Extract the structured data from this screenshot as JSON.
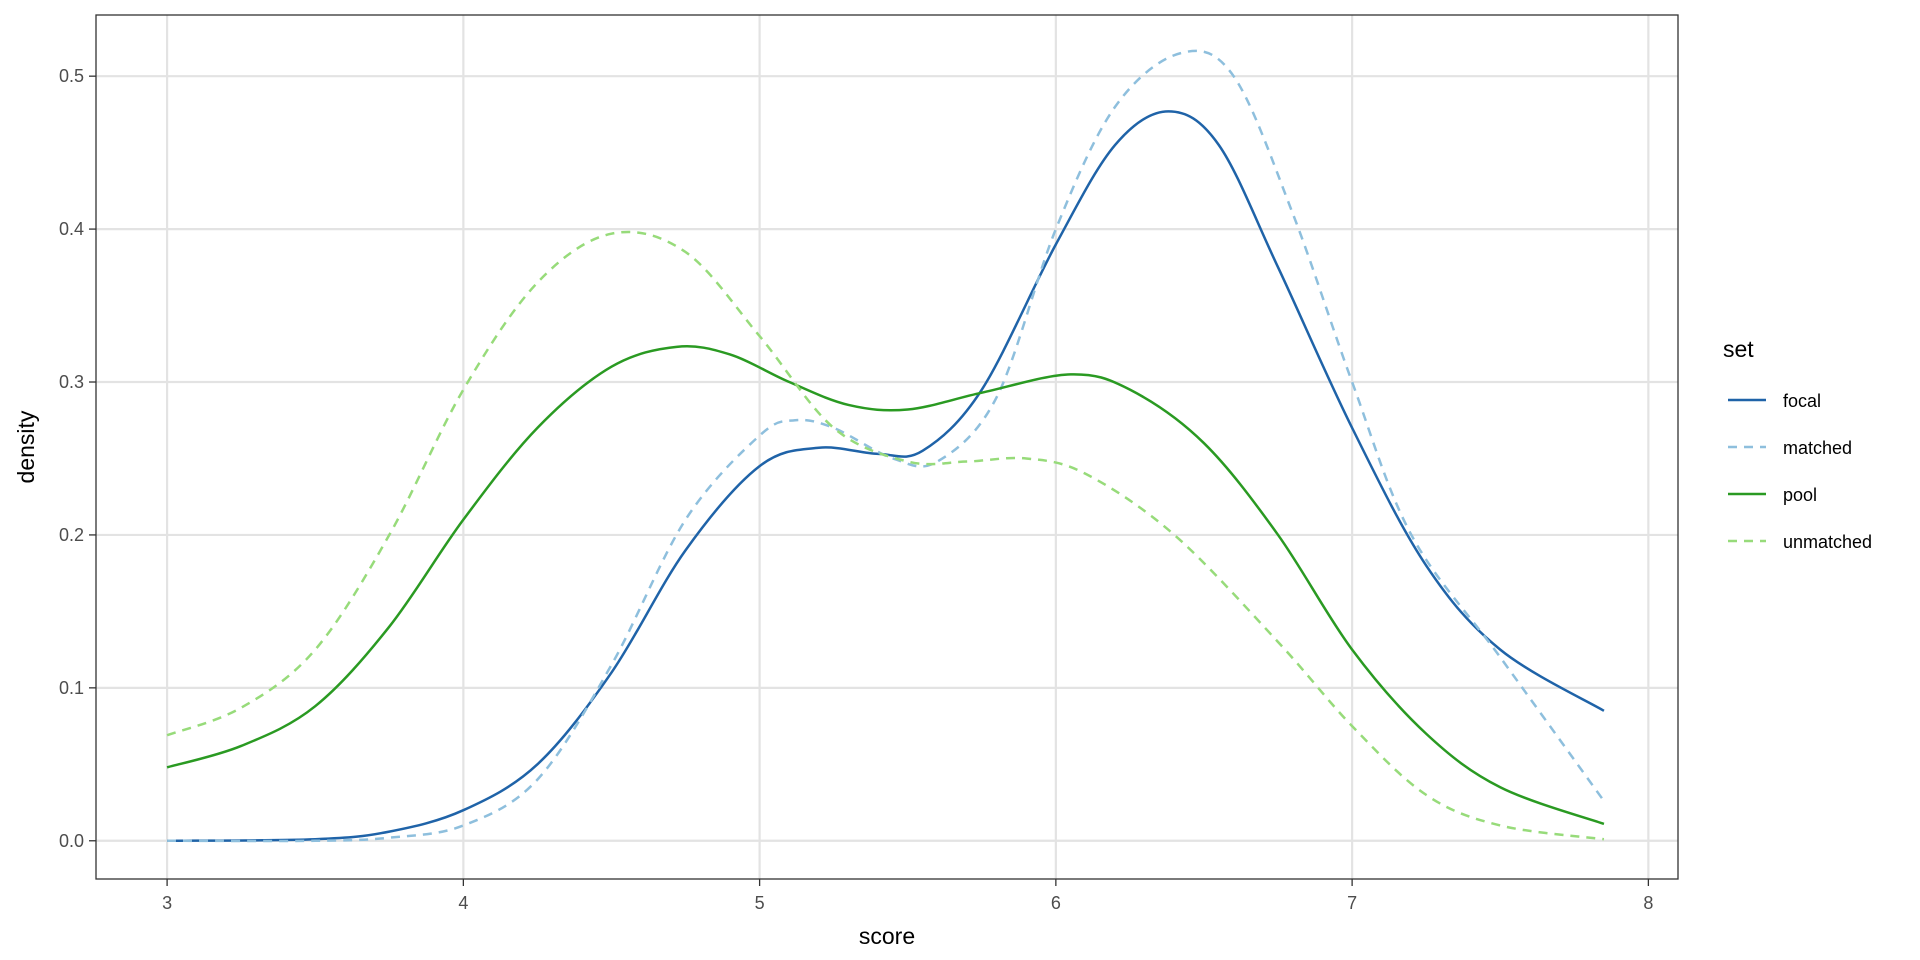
{
  "chart_data": {
    "type": "line",
    "xlabel": "score",
    "ylabel": "density",
    "xlim": [
      2.76,
      8.1
    ],
    "ylim": [
      -0.025,
      0.54
    ],
    "x_ticks": [
      "3",
      "4",
      "5",
      "6",
      "7",
      "8"
    ],
    "y_ticks": [
      "0.0",
      "0.1",
      "0.2",
      "0.3",
      "0.4",
      "0.5"
    ],
    "grid": true,
    "legend_title": "set",
    "legend_position": "right",
    "series": [
      {
        "name": "focal",
        "color": "#1f63a8",
        "dash": "solid",
        "points": [
          [
            3.0,
            0.0
          ],
          [
            3.5,
            0.001
          ],
          [
            3.75,
            0.006
          ],
          [
            4.0,
            0.02
          ],
          [
            4.25,
            0.05
          ],
          [
            4.5,
            0.11
          ],
          [
            4.75,
            0.19
          ],
          [
            5.0,
            0.245
          ],
          [
            5.2,
            0.257
          ],
          [
            5.4,
            0.253
          ],
          [
            5.55,
            0.255
          ],
          [
            5.75,
            0.295
          ],
          [
            6.0,
            0.39
          ],
          [
            6.2,
            0.455
          ],
          [
            6.38,
            0.477
          ],
          [
            6.55,
            0.455
          ],
          [
            6.75,
            0.375
          ],
          [
            7.0,
            0.27
          ],
          [
            7.25,
            0.18
          ],
          [
            7.5,
            0.125
          ],
          [
            7.85,
            0.085
          ]
        ]
      },
      {
        "name": "matched",
        "color": "#8ebfdd",
        "dash": "dashed",
        "points": [
          [
            3.0,
            0.0
          ],
          [
            3.5,
            0.0
          ],
          [
            3.75,
            0.002
          ],
          [
            4.0,
            0.01
          ],
          [
            4.25,
            0.04
          ],
          [
            4.5,
            0.115
          ],
          [
            4.75,
            0.21
          ],
          [
            5.0,
            0.265
          ],
          [
            5.12,
            0.275
          ],
          [
            5.25,
            0.27
          ],
          [
            5.45,
            0.25
          ],
          [
            5.6,
            0.248
          ],
          [
            5.8,
            0.29
          ],
          [
            6.0,
            0.4
          ],
          [
            6.2,
            0.48
          ],
          [
            6.42,
            0.515
          ],
          [
            6.6,
            0.5
          ],
          [
            6.8,
            0.41
          ],
          [
            7.0,
            0.3
          ],
          [
            7.2,
            0.2
          ],
          [
            7.5,
            0.12
          ],
          [
            7.85,
            0.026
          ]
        ]
      },
      {
        "name": "pool",
        "color": "#2a9a22",
        "dash": "solid",
        "points": [
          [
            3.0,
            0.048
          ],
          [
            3.25,
            0.062
          ],
          [
            3.5,
            0.088
          ],
          [
            3.75,
            0.14
          ],
          [
            4.0,
            0.21
          ],
          [
            4.25,
            0.27
          ],
          [
            4.5,
            0.31
          ],
          [
            4.72,
            0.323
          ],
          [
            4.9,
            0.318
          ],
          [
            5.1,
            0.3
          ],
          [
            5.3,
            0.285
          ],
          [
            5.5,
            0.282
          ],
          [
            5.75,
            0.293
          ],
          [
            6.05,
            0.305
          ],
          [
            6.25,
            0.295
          ],
          [
            6.5,
            0.26
          ],
          [
            6.75,
            0.2
          ],
          [
            7.0,
            0.125
          ],
          [
            7.25,
            0.07
          ],
          [
            7.5,
            0.035
          ],
          [
            7.85,
            0.011
          ]
        ]
      },
      {
        "name": "unmatched",
        "color": "#97db7a",
        "dash": "dashed",
        "points": [
          [
            3.0,
            0.069
          ],
          [
            3.25,
            0.087
          ],
          [
            3.5,
            0.125
          ],
          [
            3.75,
            0.2
          ],
          [
            4.0,
            0.295
          ],
          [
            4.25,
            0.365
          ],
          [
            4.5,
            0.397
          ],
          [
            4.75,
            0.385
          ],
          [
            5.0,
            0.33
          ],
          [
            5.25,
            0.27
          ],
          [
            5.5,
            0.248
          ],
          [
            5.7,
            0.248
          ],
          [
            5.9,
            0.25
          ],
          [
            6.1,
            0.24
          ],
          [
            6.4,
            0.2
          ],
          [
            6.75,
            0.13
          ],
          [
            7.0,
            0.075
          ],
          [
            7.25,
            0.03
          ],
          [
            7.5,
            0.01
          ],
          [
            7.85,
            0.001
          ]
        ]
      }
    ]
  }
}
